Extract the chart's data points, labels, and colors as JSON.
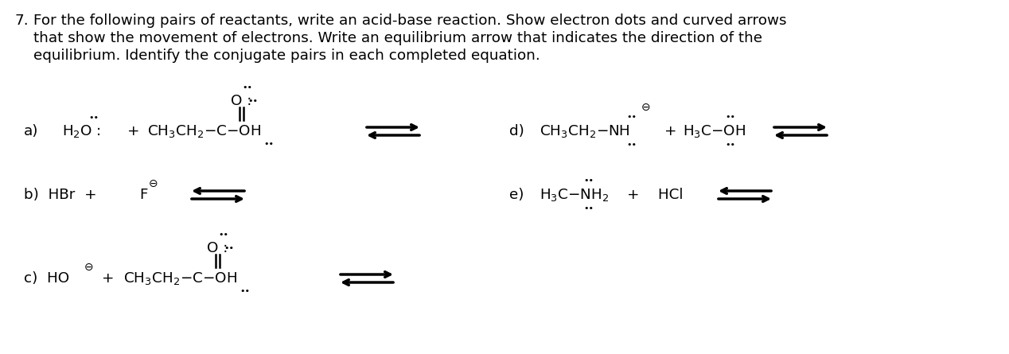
{
  "bg_color": "#ffffff",
  "text_color": "#000000",
  "title_fs": 13.2,
  "chem_fs": 13.2,
  "dot_fs": 8.0,
  "charge_fs": 10.0,
  "line1": "7.  For the following pairs of reactants, write an acid-base reaction. Show electron dots and curved arrows",
  "line2": "    that show the movement of electrons. Write an equilibrium arrow that indicates the direction of the",
  "line3": "    equilibrium. Identify the conjugate pairs in each completed equation."
}
